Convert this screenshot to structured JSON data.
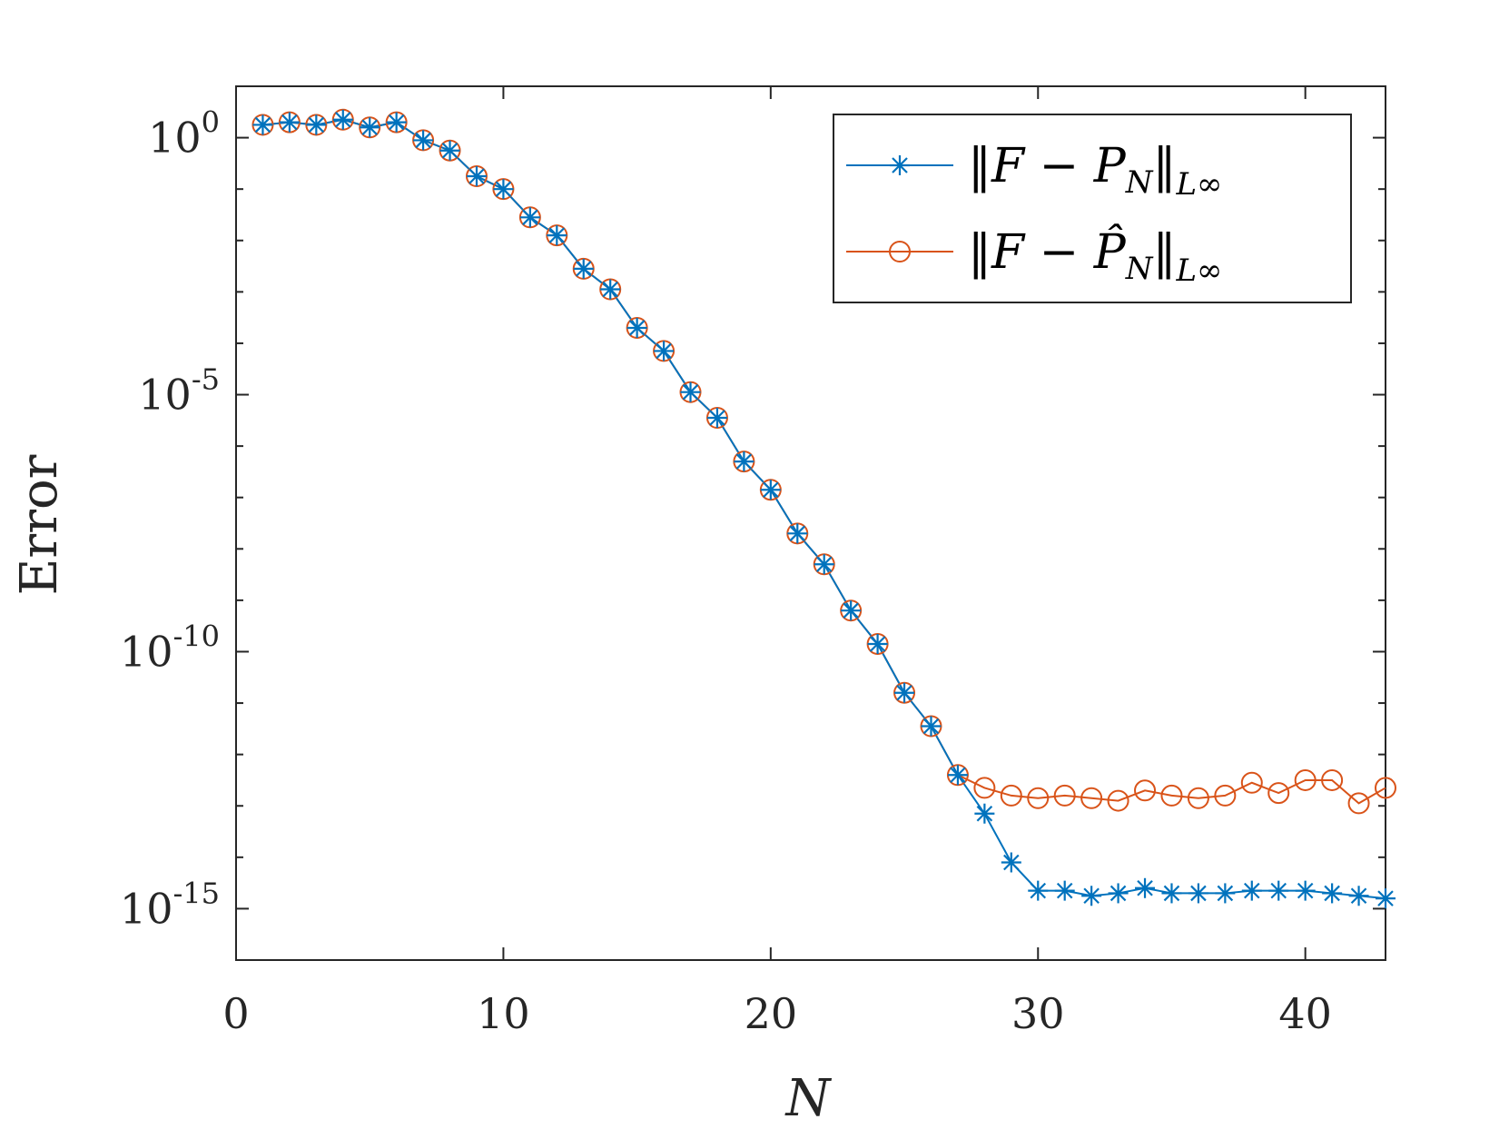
{
  "chart_data": {
    "type": "line",
    "title": "",
    "xlabel": "N",
    "ylabel": "Error",
    "yscale": "log",
    "xlim": [
      0,
      43
    ],
    "ylim_exponent": [
      -16,
      1
    ],
    "xticks": [
      0,
      10,
      20,
      30,
      40
    ],
    "xtick_labels": [
      "0",
      "10",
      "20",
      "30",
      "40"
    ],
    "yticks": [
      {
        "base": "10",
        "exp": "0",
        "value": 0
      },
      {
        "base": "10",
        "exp": "-5",
        "value": -5
      },
      {
        "base": "10",
        "exp": "-10",
        "value": -10
      },
      {
        "base": "10",
        "exp": "-15",
        "value": -15
      }
    ],
    "legend_position": "top-right",
    "x": [
      1,
      2,
      3,
      4,
      5,
      6,
      7,
      8,
      9,
      10,
      11,
      12,
      13,
      14,
      15,
      16,
      17,
      18,
      19,
      20,
      21,
      22,
      23,
      24,
      25,
      26,
      27,
      28,
      29,
      30,
      31,
      32,
      33,
      34,
      35,
      36,
      37,
      38,
      39,
      40,
      41,
      42,
      43
    ],
    "series": [
      {
        "name": "‖F − P_N‖_{L∞}",
        "legend_label": "‖F − P",
        "legend_sub": "N",
        "legend_tail": "‖",
        "legend_norm": "L∞",
        "color": "#0072BD",
        "marker": "asterisk",
        "log10_values": [
          0.25,
          0.3,
          0.25,
          0.35,
          0.2,
          0.3,
          -0.05,
          -0.25,
          -0.75,
          -1.0,
          -1.55,
          -1.9,
          -2.55,
          -2.95,
          -3.7,
          -4.15,
          -4.95,
          -5.45,
          -6.3,
          -6.85,
          -7.7,
          -8.3,
          -9.2,
          -9.85,
          -10.8,
          -11.45,
          -12.4,
          -13.15,
          -14.1,
          -14.65,
          -14.65,
          -14.75,
          -14.7,
          -14.6,
          -14.7,
          -14.7,
          -14.7,
          -14.65,
          -14.65,
          -14.65,
          -14.7,
          -14.75,
          -14.8
        ]
      },
      {
        "name": "‖F − P̂_N‖_{L∞}",
        "legend_label": "‖F − P̂",
        "legend_sub": "N",
        "legend_tail": "‖",
        "legend_norm": "L∞",
        "color": "#D95319",
        "marker": "circle",
        "log10_values": [
          0.25,
          0.3,
          0.25,
          0.35,
          0.2,
          0.3,
          -0.05,
          -0.25,
          -0.75,
          -1.0,
          -1.55,
          -1.9,
          -2.55,
          -2.95,
          -3.7,
          -4.15,
          -4.95,
          -5.45,
          -6.3,
          -6.85,
          -7.7,
          -8.3,
          -9.2,
          -9.85,
          -10.8,
          -11.45,
          -12.4,
          -12.65,
          -12.8,
          -12.85,
          -12.8,
          -12.85,
          -12.9,
          -12.7,
          -12.8,
          -12.85,
          -12.8,
          -12.55,
          -12.75,
          -12.5,
          -12.5,
          -12.95,
          -12.65
        ]
      }
    ]
  }
}
